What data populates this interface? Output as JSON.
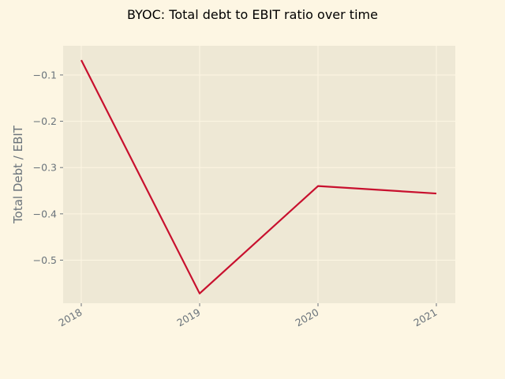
{
  "chart_data": {
    "type": "line",
    "title": "BYOC: Total debt to EBIT ratio over time",
    "xlabel": "",
    "ylabel": "Total Debt / EBIT",
    "categories": [
      "2018",
      "2019",
      "2020",
      "2021"
    ],
    "series": [
      {
        "values": [
          -0.068,
          -0.572,
          -0.34,
          -0.356
        ],
        "color": "#c8102e"
      }
    ],
    "ylim": [
      -0.593,
      -0.037
    ],
    "yticks": [
      -0.1,
      -0.2,
      -0.3,
      -0.4,
      -0.5
    ],
    "ytick_labels": [
      "−0.1",
      "−0.2",
      "−0.3",
      "−0.4",
      "−0.5"
    ],
    "grid": true,
    "colors": {
      "figure_bg": "#fdf6e3",
      "axes_bg": "#eee8d5",
      "grid": "#fdf6e3",
      "tick_text": "#6a737b"
    }
  }
}
